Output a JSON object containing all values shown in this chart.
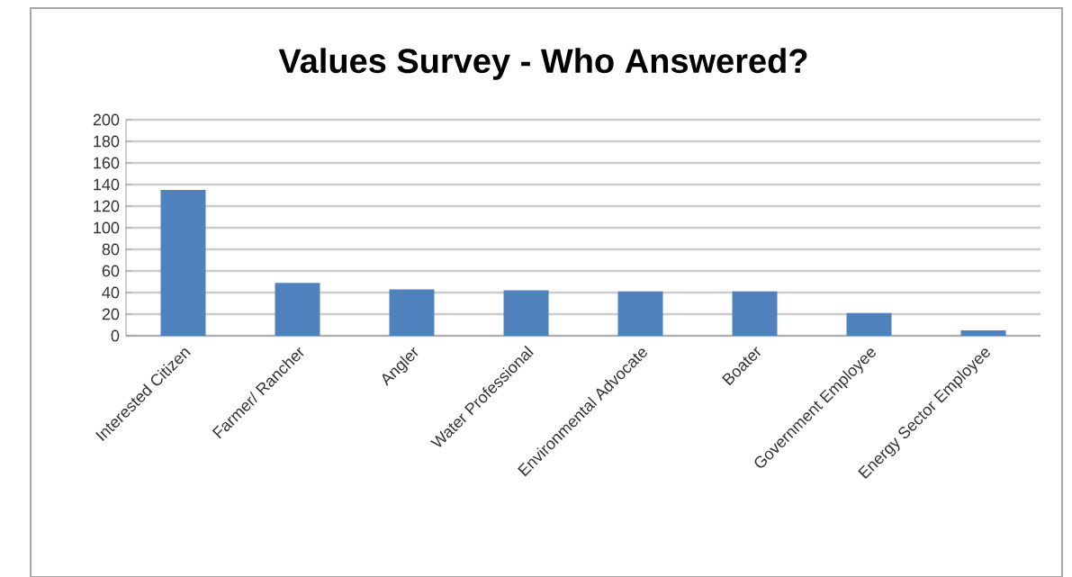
{
  "chart_data": {
    "type": "bar",
    "title": "Values Survey - Who Answered?",
    "categories": [
      "Interested Citizen",
      "Farmer/ Rancher",
      "Angler",
      "Water Professional",
      "Environmental Advocate",
      "Boater",
      "Government Employee",
      "Energy Sector Employee"
    ],
    "values": [
      135,
      49,
      43,
      42,
      41,
      41,
      21,
      5
    ],
    "color": "#4f81bd",
    "ylim": [
      0,
      200
    ],
    "yticks": [
      0,
      20,
      40,
      60,
      80,
      100,
      120,
      140,
      160,
      180,
      200
    ],
    "grid": "y"
  }
}
